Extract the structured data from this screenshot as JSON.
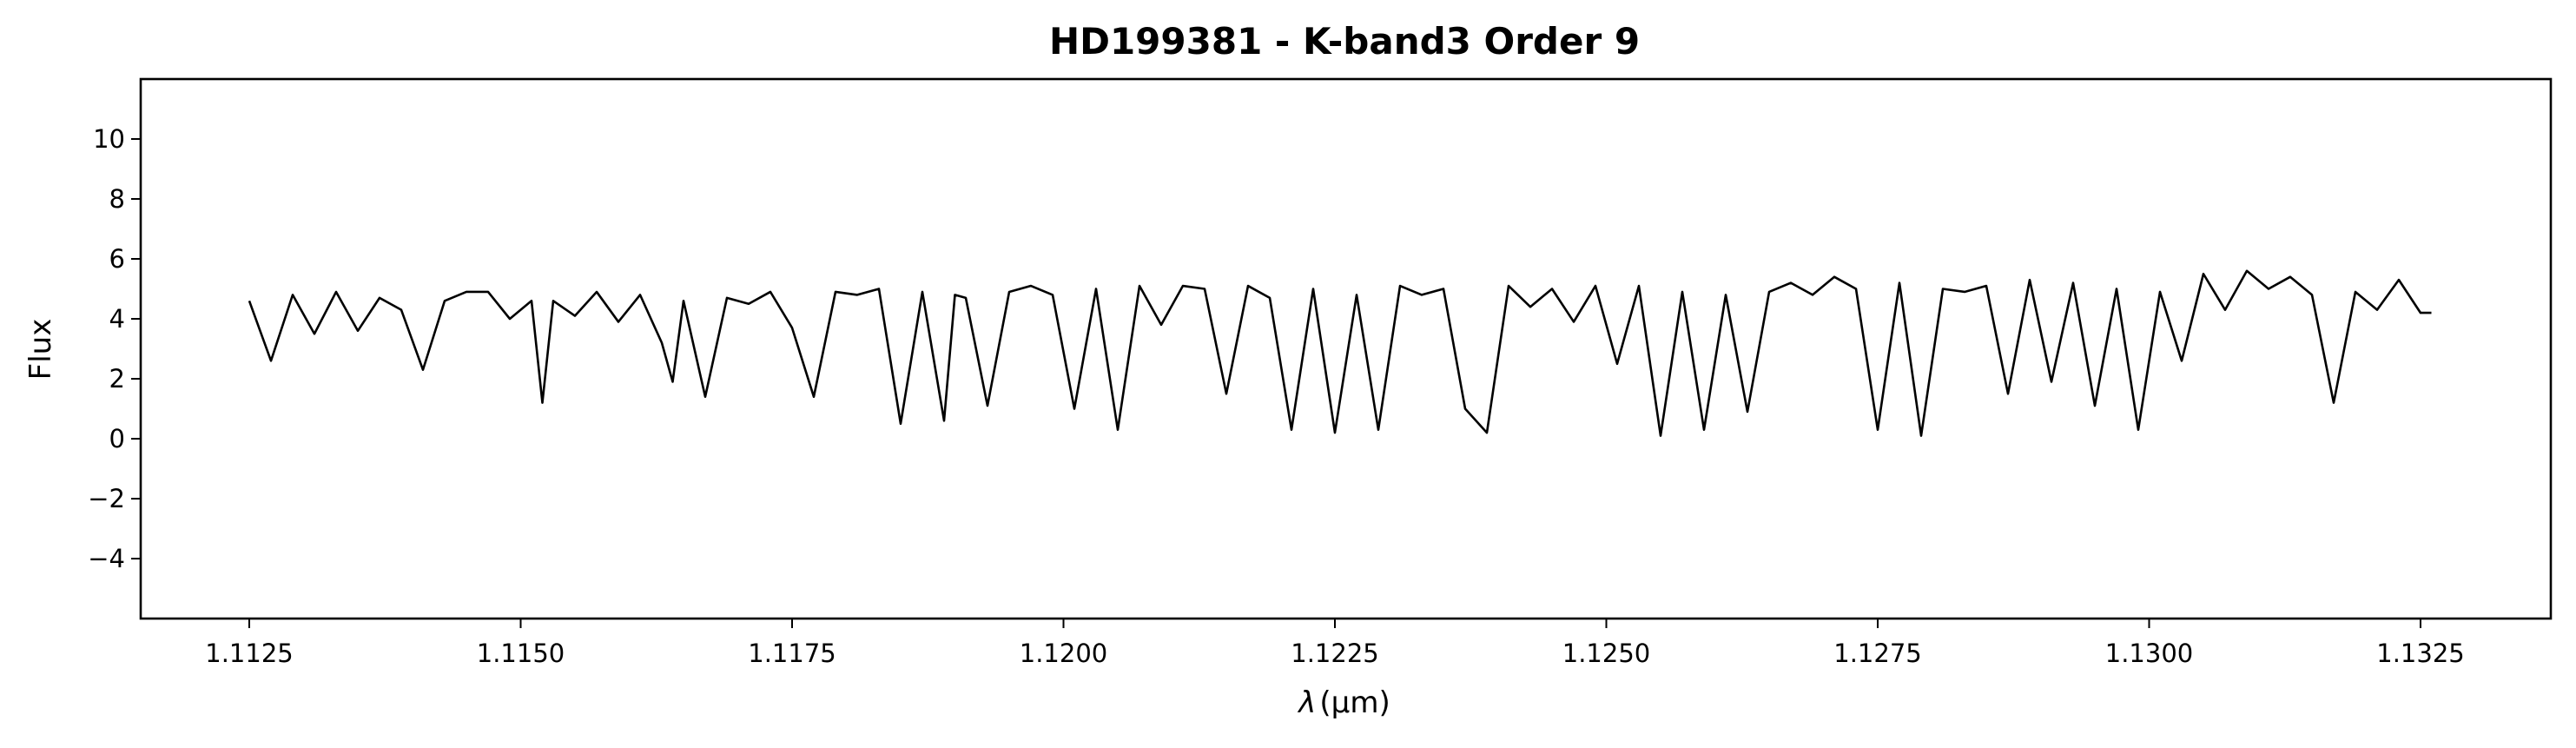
{
  "chart_data": {
    "type": "line",
    "title": "HD199381 - K-band3 Order 9",
    "xlabel_symbol": "λ",
    "xlabel_unit": "(μm)",
    "ylabel": "Flux",
    "xlim": [
      1.1115,
      1.1337
    ],
    "ylim": [
      -6,
      12
    ],
    "xticks": [
      1.1125,
      1.115,
      1.1175,
      1.12,
      1.1225,
      1.125,
      1.1275,
      1.13,
      1.1325
    ],
    "xtick_labels": [
      "1.1125",
      "1.1150",
      "1.1175",
      "1.1200",
      "1.1225",
      "1.1250",
      "1.1275",
      "1.1300",
      "1.1325"
    ],
    "yticks": [
      -4,
      -2,
      0,
      2,
      4,
      6,
      8,
      10
    ],
    "ytick_labels": [
      "−4",
      "−2",
      "0",
      "2",
      "4",
      "6",
      "8",
      "10"
    ],
    "grid": false,
    "line_color": "#000000",
    "series": [
      {
        "x": [
          1.1125,
          1.1127,
          1.1129,
          1.1131,
          1.1133,
          1.1135,
          1.1137,
          1.1139,
          1.1141,
          1.1143,
          1.1145,
          1.1147,
          1.1149,
          1.1151,
          1.1152,
          1.1153,
          1.1155,
          1.1157,
          1.1159,
          1.1161,
          1.1163,
          1.1164,
          1.1165,
          1.1167,
          1.1169,
          1.1171,
          1.1173,
          1.1175,
          1.1177,
          1.1179,
          1.1181,
          1.1183,
          1.1185,
          1.1187,
          1.1189,
          1.119,
          1.1191,
          1.1193,
          1.1195,
          1.1197,
          1.1199,
          1.1201,
          1.1203,
          1.1205,
          1.1207,
          1.1209,
          1.1211,
          1.1213,
          1.1215,
          1.1217,
          1.1219,
          1.1221,
          1.1223,
          1.1225,
          1.1227,
          1.1229,
          1.1231,
          1.1233,
          1.1235,
          1.1237,
          1.1239,
          1.1241,
          1.1243,
          1.1245,
          1.1247,
          1.1249,
          1.1251,
          1.1253,
          1.1255,
          1.1257,
          1.1259,
          1.1261,
          1.1263,
          1.1265,
          1.1267,
          1.1269,
          1.1271,
          1.1273,
          1.1275,
          1.1277,
          1.1279,
          1.1281,
          1.1283,
          1.1285,
          1.1287,
          1.1289,
          1.1291,
          1.1293,
          1.1295,
          1.1297,
          1.1299,
          1.1301,
          1.1303,
          1.1305,
          1.1307,
          1.1309,
          1.1311,
          1.1313,
          1.1315,
          1.1317,
          1.1319,
          1.1321,
          1.1323,
          1.1325,
          1.1326
        ],
        "y": [
          4.6,
          2.6,
          4.8,
          3.5,
          4.9,
          3.6,
          4.7,
          4.3,
          2.3,
          4.6,
          4.9,
          4.9,
          4.0,
          4.6,
          1.2,
          4.6,
          4.1,
          4.9,
          3.9,
          4.8,
          3.2,
          1.9,
          4.6,
          1.4,
          4.7,
          4.5,
          4.9,
          3.7,
          1.4,
          4.9,
          4.8,
          5.0,
          0.5,
          4.9,
          0.6,
          4.8,
          4.7,
          1.1,
          4.9,
          5.1,
          4.8,
          1.0,
          5.0,
          0.3,
          5.1,
          3.8,
          5.1,
          5.0,
          1.5,
          5.1,
          4.7,
          0.3,
          5.0,
          0.2,
          4.8,
          0.3,
          5.1,
          4.8,
          5.0,
          1.0,
          0.2,
          5.1,
          4.4,
          5.0,
          3.9,
          5.1,
          2.5,
          5.1,
          0.1,
          4.9,
          0.3,
          4.8,
          0.9,
          4.9,
          5.2,
          4.8,
          5.4,
          5.0,
          0.3,
          5.2,
          0.1,
          5.0,
          4.9,
          5.1,
          1.5,
          5.3,
          1.9,
          5.2,
          1.1,
          5.0,
          0.3,
          4.9,
          2.6,
          5.5,
          4.3,
          5.6,
          5.0,
          5.4,
          4.8,
          1.2,
          4.9,
          4.3,
          5.3,
          4.2,
          4.2
        ]
      }
    ]
  }
}
